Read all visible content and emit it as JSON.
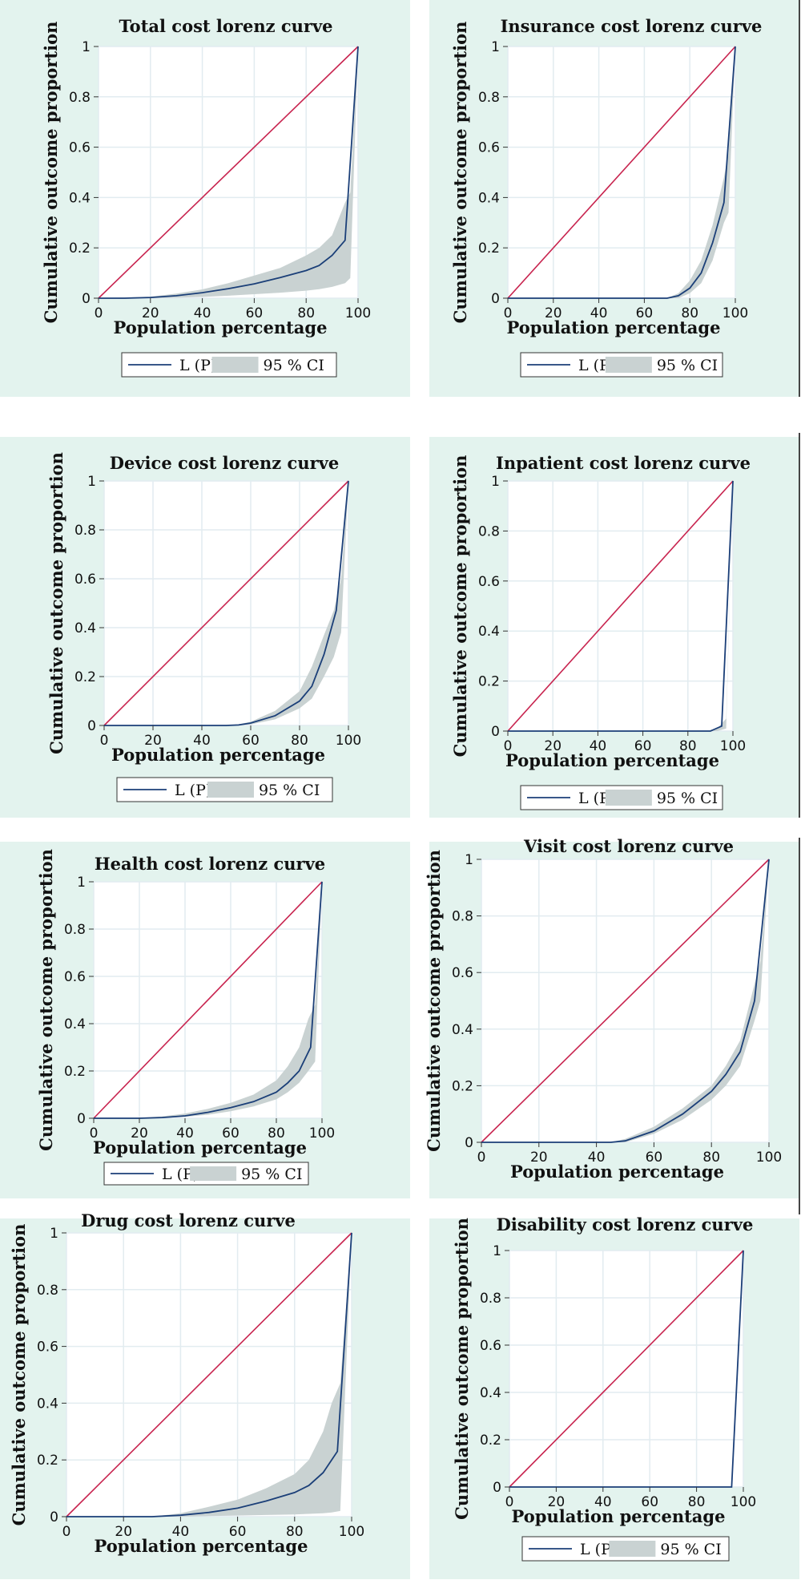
{
  "colors": {
    "panel_bg": "#e3f3ee",
    "plot_bg": "#ffffff",
    "grid": "#e2ecf0",
    "equality_line": "#c8244f",
    "lorenz_line": "#1b3f78",
    "ci_fill": "#c9d2d2"
  },
  "legend": {
    "lp": "L (P)",
    "ci": "95 % CI"
  },
  "axes": {
    "xlabel": "Population percentage",
    "ylabel": "Cumulative outcome proportion",
    "xticks": [
      "0",
      "20",
      "40",
      "60",
      "80",
      "100"
    ],
    "yticks": [
      "0",
      "0.2",
      "0.4",
      "0.6",
      "0.8",
      "1"
    ],
    "xlim": [
      0,
      100
    ],
    "ylim": [
      0,
      1
    ]
  },
  "chart_data": [
    {
      "type": "line",
      "title": "Total cost lorenz curve",
      "xlabel": "Population percentage",
      "ylabel": "Cumulative outcome proportion",
      "x": [
        0,
        10,
        20,
        30,
        40,
        50,
        60,
        70,
        80,
        85,
        90,
        95,
        100
      ],
      "series": [
        {
          "name": "L (P)",
          "values": [
            0,
            0,
            0.003,
            0.01,
            0.022,
            0.038,
            0.057,
            0.082,
            0.11,
            0.13,
            0.17,
            0.23,
            1
          ]
        }
      ],
      "ci": {
        "name": "95 % CI",
        "x": [
          0,
          20,
          30,
          40,
          50,
          60,
          70,
          80,
          85,
          90,
          95,
          97,
          100
        ],
        "lower": [
          0,
          0,
          0.002,
          0.005,
          0.01,
          0.016,
          0.022,
          0.03,
          0.036,
          0.045,
          0.06,
          0.08,
          1
        ],
        "upper": [
          0,
          0.006,
          0.018,
          0.035,
          0.06,
          0.09,
          0.12,
          0.17,
          0.2,
          0.25,
          0.38,
          0.42,
          1
        ]
      }
    },
    {
      "type": "line",
      "title": "Insurance cost lorenz curve",
      "xlabel": "Population percentage",
      "ylabel": "Cumulative outcome proportion",
      "x": [
        0,
        20,
        40,
        60,
        70,
        75,
        80,
        85,
        90,
        95,
        100
      ],
      "series": [
        {
          "name": "L (P)",
          "values": [
            0,
            0,
            0,
            0,
            0,
            0.01,
            0.04,
            0.1,
            0.22,
            0.38,
            1
          ]
        }
      ],
      "ci": {
        "name": "95 % CI",
        "x": [
          0,
          70,
          75,
          80,
          85,
          90,
          95,
          97,
          100
        ],
        "lower": [
          0,
          0,
          0,
          0.02,
          0.06,
          0.15,
          0.3,
          0.34,
          1
        ],
        "upper": [
          0,
          0,
          0.02,
          0.07,
          0.15,
          0.29,
          0.48,
          0.58,
          1
        ]
      }
    },
    {
      "type": "line",
      "title": "Device cost lorenz curve",
      "xlabel": "Population percentage",
      "ylabel": "Cumulative outcome proportion",
      "x": [
        0,
        20,
        40,
        50,
        55,
        60,
        70,
        80,
        85,
        90,
        95,
        100
      ],
      "series": [
        {
          "name": "L (P)",
          "values": [
            0,
            0,
            0,
            0,
            0.002,
            0.01,
            0.04,
            0.1,
            0.16,
            0.29,
            0.47,
            1
          ]
        }
      ],
      "ci": {
        "name": "95 % CI",
        "x": [
          0,
          50,
          55,
          60,
          70,
          80,
          85,
          90,
          94,
          97,
          100
        ],
        "lower": [
          0,
          0,
          0,
          0.004,
          0.025,
          0.07,
          0.11,
          0.2,
          0.28,
          0.38,
          1
        ],
        "upper": [
          0,
          0,
          0.005,
          0.015,
          0.06,
          0.14,
          0.24,
          0.37,
          0.47,
          0.6,
          1
        ]
      }
    },
    {
      "type": "line",
      "title": "Inpatient cost lorenz curve",
      "xlabel": "Population percentage",
      "ylabel": "Cumulative outcome proportion",
      "x": [
        0,
        20,
        40,
        60,
        80,
        90,
        95,
        100
      ],
      "series": [
        {
          "name": "L (P)",
          "values": [
            0,
            0,
            0,
            0,
            0,
            0,
            0.02,
            1
          ]
        }
      ],
      "ci": {
        "name": "95 % CI",
        "x": [
          0,
          90,
          93,
          95,
          97,
          100
        ],
        "lower": [
          0,
          0,
          0,
          0.005,
          0.01,
          1
        ],
        "upper": [
          0,
          0,
          0.01,
          0.03,
          0.05,
          1
        ]
      }
    },
    {
      "type": "line",
      "title": "Health cost lorenz curve",
      "xlabel": "Population percentage",
      "ylabel": "Cumulative outcome proportion",
      "x": [
        0,
        20,
        30,
        40,
        50,
        60,
        70,
        80,
        85,
        90,
        95,
        100
      ],
      "series": [
        {
          "name": "L (P)",
          "values": [
            0,
            0,
            0.003,
            0.01,
            0.025,
            0.045,
            0.07,
            0.11,
            0.15,
            0.2,
            0.3,
            1
          ]
        }
      ],
      "ci": {
        "name": "95 % CI",
        "x": [
          0,
          20,
          30,
          40,
          50,
          60,
          70,
          80,
          85,
          90,
          94,
          97,
          100
        ],
        "lower": [
          0,
          0,
          0.001,
          0.006,
          0.015,
          0.03,
          0.05,
          0.08,
          0.11,
          0.15,
          0.2,
          0.24,
          1
        ],
        "upper": [
          0,
          0.002,
          0.008,
          0.02,
          0.04,
          0.065,
          0.1,
          0.16,
          0.22,
          0.3,
          0.42,
          0.48,
          1
        ]
      }
    },
    {
      "type": "line",
      "title": "Visit cost lorenz curve",
      "xlabel": "Population percentage",
      "ylabel": "Cumulative outcome proportion",
      "x": [
        0,
        20,
        40,
        45,
        50,
        60,
        70,
        80,
        85,
        90,
        95,
        100
      ],
      "series": [
        {
          "name": "L (P)",
          "values": [
            0,
            0,
            0,
            0,
            0.005,
            0.04,
            0.1,
            0.18,
            0.24,
            0.32,
            0.5,
            1
          ]
        }
      ],
      "ci": {
        "name": "95 % CI",
        "x": [
          0,
          45,
          50,
          60,
          70,
          80,
          85,
          90,
          95,
          97,
          100
        ],
        "lower": [
          0,
          0,
          0,
          0.03,
          0.08,
          0.15,
          0.2,
          0.27,
          0.43,
          0.5,
          1
        ],
        "upper": [
          0,
          0,
          0.012,
          0.055,
          0.12,
          0.2,
          0.27,
          0.36,
          0.56,
          0.64,
          1
        ]
      }
    },
    {
      "type": "line",
      "title": "Drug cost lorenz curve",
      "xlabel": "Population percentage",
      "ylabel": "Cumulative outcome proportion",
      "x": [
        0,
        20,
        30,
        40,
        50,
        60,
        70,
        80,
        85,
        90,
        95,
        100
      ],
      "series": [
        {
          "name": "L (P)",
          "values": [
            0,
            0,
            0,
            0.005,
            0.015,
            0.03,
            0.055,
            0.085,
            0.11,
            0.155,
            0.23,
            1
          ]
        }
      ],
      "ci": {
        "name": "95 % CI",
        "x": [
          0,
          30,
          40,
          50,
          60,
          70,
          80,
          85,
          90,
          93,
          96,
          100
        ],
        "lower": [
          0,
          0,
          0,
          0.002,
          0.004,
          0.006,
          0.008,
          0.01,
          0.012,
          0.015,
          0.02,
          1
        ],
        "upper": [
          0,
          0,
          0.012,
          0.035,
          0.06,
          0.1,
          0.15,
          0.2,
          0.3,
          0.4,
          0.47,
          1
        ]
      }
    },
    {
      "type": "line",
      "title": "Disability cost lorenz curve",
      "xlabel": "Population percentage",
      "ylabel": "Cumulative outcome proportion",
      "x": [
        0,
        20,
        40,
        60,
        80,
        95,
        100
      ],
      "series": [
        {
          "name": "L (P)",
          "values": [
            0,
            0,
            0,
            0,
            0,
            0,
            1
          ]
        }
      ],
      "ci": {
        "name": "95 % CI",
        "x": [
          0,
          95,
          100
        ],
        "lower": [
          0,
          0,
          1
        ],
        "upper": [
          0,
          0,
          1
        ]
      }
    }
  ]
}
